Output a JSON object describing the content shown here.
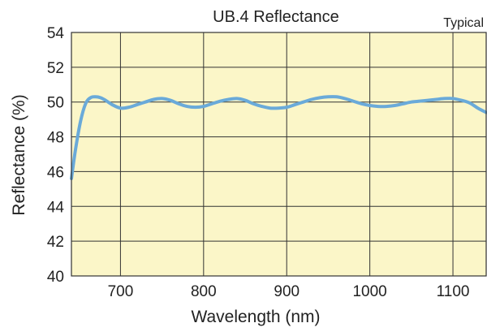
{
  "chart_data": {
    "type": "line",
    "title": "UB.4 Reflectance",
    "note": "Typical",
    "xlabel": "Wavelength (nm)",
    "ylabel": "Reflectance (%)",
    "xlim": [
      641,
      1140
    ],
    "ylim": [
      40,
      54
    ],
    "xticks": [
      700,
      800,
      900,
      1000,
      1100
    ],
    "xtick_labels": [
      "700",
      "800",
      "900",
      "1000",
      "1100"
    ],
    "yticks": [
      40,
      42,
      44,
      46,
      48,
      50,
      52,
      54
    ],
    "ytick_labels": [
      "40",
      "42",
      "44",
      "46",
      "48",
      "50",
      "52",
      "54"
    ],
    "grid": true,
    "colors": {
      "plot_bg": "#fbf6c8",
      "line": "#6aaad9",
      "grid": "#333333"
    },
    "series": [
      {
        "x": [
          641,
          646,
          652,
          658,
          664,
          670,
          676,
          682,
          690,
          700,
          710,
          720,
          730,
          740,
          750,
          760,
          770,
          780,
          790,
          800,
          810,
          820,
          830,
          840,
          850,
          860,
          870,
          880,
          890,
          900,
          910,
          920,
          930,
          940,
          950,
          960,
          970,
          980,
          990,
          1000,
          1010,
          1020,
          1030,
          1040,
          1050,
          1060,
          1070,
          1080,
          1090,
          1100,
          1110,
          1120,
          1130,
          1140
        ],
        "y": [
          45.6,
          47.3,
          48.9,
          49.9,
          50.25,
          50.3,
          50.25,
          50.1,
          49.85,
          49.65,
          49.7,
          49.85,
          50.0,
          50.15,
          50.2,
          50.1,
          49.9,
          49.75,
          49.7,
          49.75,
          49.9,
          50.05,
          50.15,
          50.2,
          50.1,
          49.9,
          49.75,
          49.65,
          49.65,
          49.7,
          49.85,
          50.0,
          50.15,
          50.25,
          50.3,
          50.3,
          50.2,
          50.05,
          49.9,
          49.8,
          49.75,
          49.75,
          49.8,
          49.9,
          50.0,
          50.05,
          50.1,
          50.15,
          50.2,
          50.2,
          50.1,
          49.95,
          49.65,
          49.4
        ]
      }
    ]
  }
}
